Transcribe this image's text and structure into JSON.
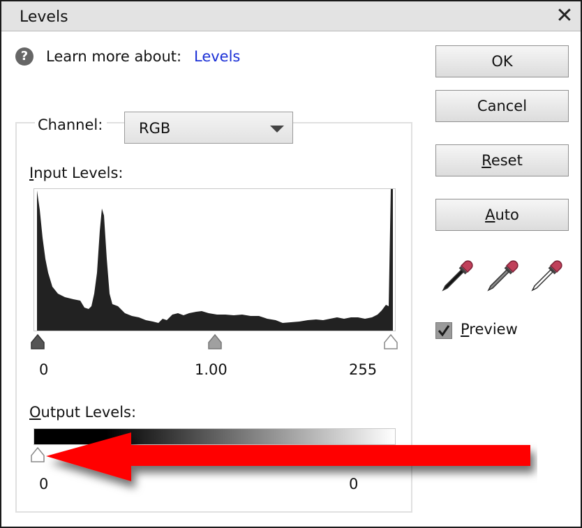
{
  "window": {
    "title": "Levels",
    "close_glyph": "✕"
  },
  "help": {
    "icon_glyph": "?",
    "learn_text": "Learn more about:",
    "link_text": "Levels"
  },
  "channel": {
    "label": "Channel:",
    "value": "RGB"
  },
  "input_levels": {
    "label_first": "I",
    "label_rest": "nput Levels:",
    "black": "0",
    "gamma": "1.00",
    "white": "255"
  },
  "output_levels": {
    "label_first": "O",
    "label_rest": "utput Levels:",
    "black": "0",
    "white": "0"
  },
  "buttons": {
    "ok": "OK",
    "cancel": "Cancel",
    "reset_first": "R",
    "reset_rest": "eset",
    "auto_first": "A",
    "auto_rest": "uto"
  },
  "eyedroppers": [
    "black-point-eyedropper",
    "gray-point-eyedropper",
    "white-point-eyedropper"
  ],
  "preview": {
    "label_first": "P",
    "label_rest": "review",
    "checked": true
  },
  "colors": {
    "link": "#1a2fd6",
    "annotation_arrow": "#ff0000",
    "histogram": "#222222"
  }
}
